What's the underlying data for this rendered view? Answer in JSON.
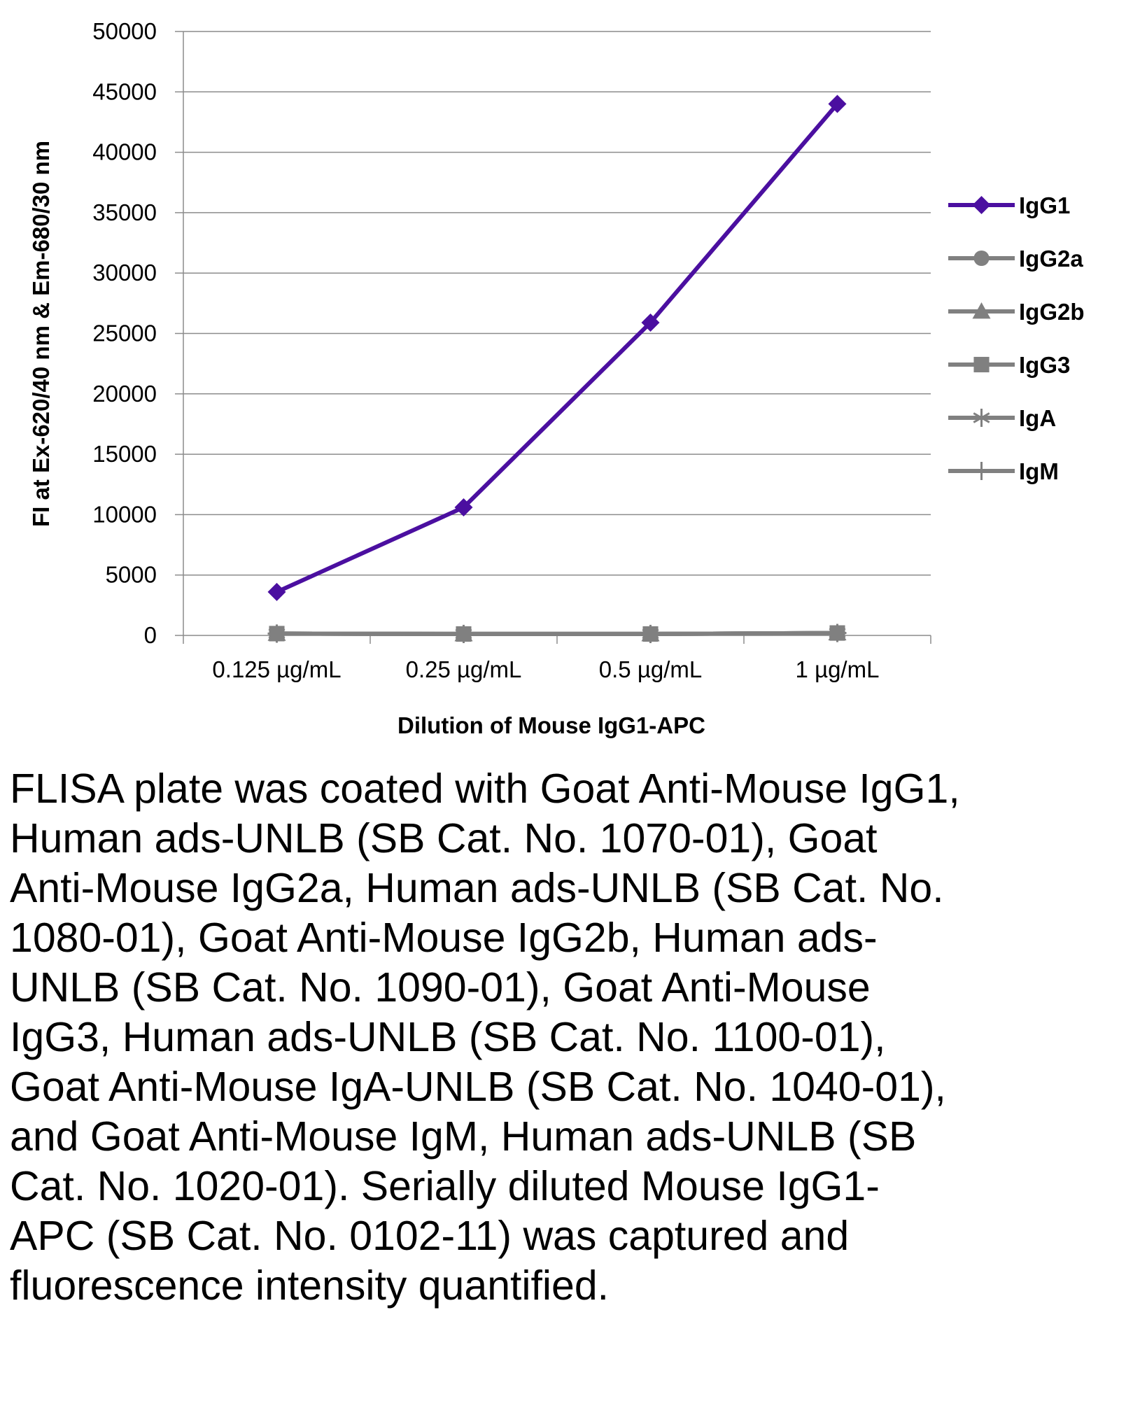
{
  "chart_data": {
    "type": "line",
    "title": "",
    "xlabel": "Dilution of Mouse IgG1-APC",
    "ylabel": "FI at Ex-620/40 nm & Em-680/30 nm",
    "categories": [
      "0.125 µg/mL",
      "0.25 µg/mL",
      "0.5 µg/mL",
      "1 µg/mL"
    ],
    "ylim": [
      0,
      50000
    ],
    "yticks": [
      0,
      5000,
      10000,
      15000,
      20000,
      25000,
      30000,
      35000,
      40000,
      45000,
      50000
    ],
    "grid": true,
    "legend_position": "right",
    "series": [
      {
        "name": "IgG1",
        "marker": "diamond",
        "color": "#4b0fa0",
        "values": [
          3600,
          10600,
          25900,
          44000
        ]
      },
      {
        "name": "IgG2a",
        "marker": "circle",
        "color": "#808080",
        "values": [
          150,
          120,
          120,
          200
        ]
      },
      {
        "name": "IgG2b",
        "marker": "triangle",
        "color": "#808080",
        "values": [
          150,
          120,
          120,
          200
        ]
      },
      {
        "name": "IgG3",
        "marker": "square",
        "color": "#808080",
        "values": [
          150,
          120,
          120,
          200
        ]
      },
      {
        "name": "IgA",
        "marker": "asterisk",
        "color": "#808080",
        "values": [
          150,
          120,
          120,
          200
        ]
      },
      {
        "name": "IgM",
        "marker": "plus",
        "color": "#808080",
        "values": [
          150,
          120,
          120,
          200
        ]
      }
    ]
  },
  "caption": "FLISA plate was coated with Goat Anti-Mouse IgG1, Human ads-UNLB (SB Cat. No. 1070-01), Goat Anti-Mouse IgG2a, Human ads-UNLB (SB Cat. No. 1080-01), Goat Anti-Mouse IgG2b, Human ads-UNLB (SB Cat. No. 1090-01), Goat Anti-Mouse IgG3, Human ads-UNLB (SB Cat. No. 1100-01), Goat Anti-Mouse IgA-UNLB (SB Cat. No. 1040-01), and Goat Anti-Mouse IgM, Human ads-UNLB (SB Cat. No. 1020-01).  Serially diluted Mouse IgG1-APC (SB Cat. No. 0102-11) was captured and fluorescence intensity quantified."
}
